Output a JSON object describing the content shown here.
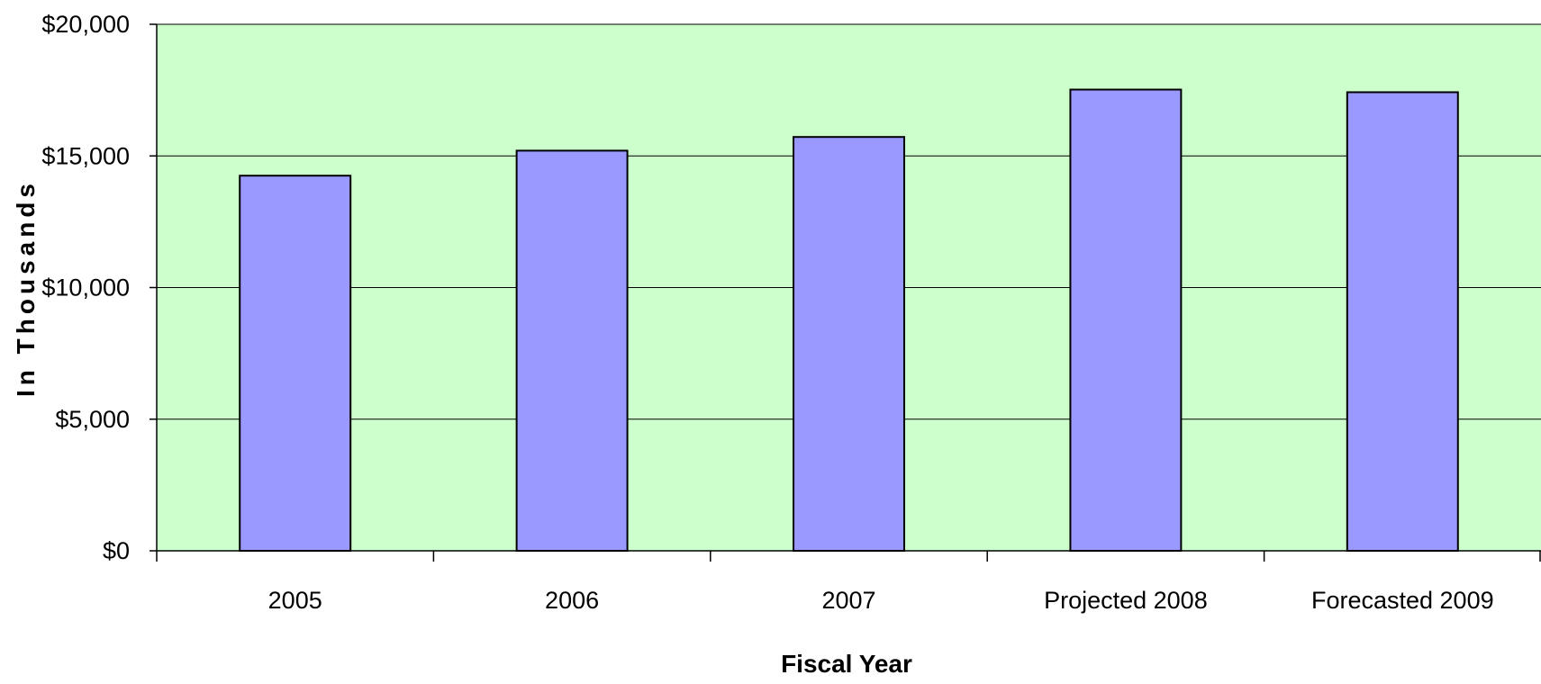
{
  "colors": {
    "plot_background": "#ccffcc",
    "bar_fill": "#9999ff",
    "bar_stroke": "#000000",
    "gridline": "#000000"
  },
  "chart_data": {
    "type": "bar",
    "categories": [
      "2005",
      "2006",
      "2007",
      "Projected 2008",
      "Forecasted 2009"
    ],
    "values": [
      14250,
      15200,
      15720,
      17520,
      17420
    ],
    "title": "",
    "xlabel": "Fiscal Year",
    "ylabel": "In Thousands",
    "ylim": [
      0,
      20000
    ],
    "yticks": [
      0,
      5000,
      10000,
      15000,
      20000
    ],
    "ytick_labels": [
      "$0",
      "$5,000",
      "$10,000",
      "$15,000",
      "$20,000"
    ],
    "grid": true,
    "legend": "none"
  }
}
